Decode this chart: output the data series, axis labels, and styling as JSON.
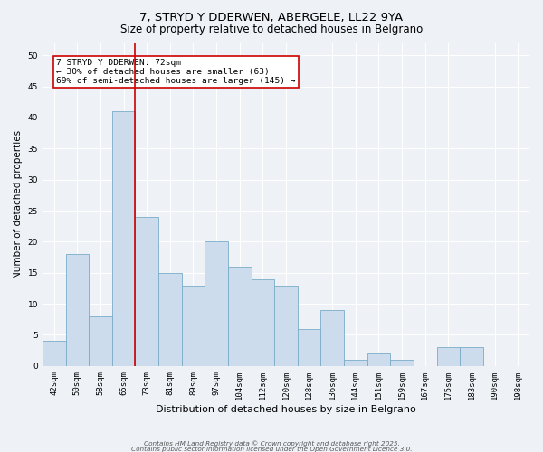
{
  "title": "7, STRYD Y DDERWEN, ABERGELE, LL22 9YA",
  "subtitle": "Size of property relative to detached houses in Belgrano",
  "xlabel": "Distribution of detached houses by size in Belgrano",
  "ylabel": "Number of detached properties",
  "bar_color": "#ccdcec",
  "bar_edge_color": "#7aacc8",
  "background_color": "#eef2f7",
  "grid_color": "#ffffff",
  "categories": [
    "42sqm",
    "50sqm",
    "58sqm",
    "65sqm",
    "73sqm",
    "81sqm",
    "89sqm",
    "97sqm",
    "104sqm",
    "112sqm",
    "120sqm",
    "128sqm",
    "136sqm",
    "144sqm",
    "151sqm",
    "159sqm",
    "167sqm",
    "175sqm",
    "183sqm",
    "190sqm",
    "198sqm"
  ],
  "values": [
    4,
    18,
    8,
    41,
    24,
    15,
    13,
    20,
    16,
    14,
    13,
    6,
    9,
    1,
    2,
    1,
    0,
    3,
    3,
    0,
    0
  ],
  "red_line_color": "#cc0000",
  "red_line_index": 3.5,
  "annotation_text": "7 STRYD Y DDERWEN: 72sqm\n← 30% of detached houses are smaller (63)\n69% of semi-detached houses are larger (145) →",
  "annotation_box_facecolor": "#ffffff",
  "annotation_box_edgecolor": "#cc0000",
  "ylim": [
    0,
    52
  ],
  "yticks": [
    0,
    5,
    10,
    15,
    20,
    25,
    30,
    35,
    40,
    45,
    50
  ],
  "footer_line1": "Contains HM Land Registry data © Crown copyright and database right 2025.",
  "footer_line2": "Contains public sector information licensed under the Open Government Licence 3.0.",
  "title_fontsize": 9.5,
  "subtitle_fontsize": 8.5,
  "axis_label_fontsize": 7.5,
  "tick_fontsize": 6.5,
  "annotation_fontsize": 6.8,
  "footer_fontsize": 5.2
}
